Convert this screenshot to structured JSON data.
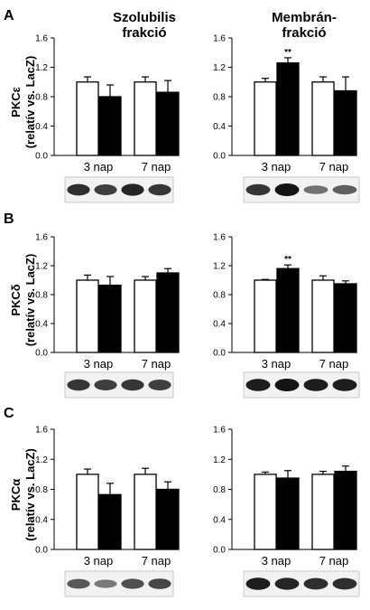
{
  "headers": {
    "left": [
      "Szolubilis",
      "frakció"
    ],
    "right": [
      "Membrán-",
      "frakció"
    ]
  },
  "colors": {
    "control": "#ffffff",
    "treated": "#000000",
    "axis": "#000000"
  },
  "chart_data": [
    {
      "panel": "A",
      "row": 0,
      "col": 0,
      "type": "bar",
      "ylabel": [
        "PKCε",
        "(relatív vs. LacZ)"
      ],
      "categories": [
        "3 nap",
        "7 nap"
      ],
      "ylim": [
        0,
        1.6
      ],
      "yticks": [
        0.0,
        0.4,
        0.8,
        1.2,
        1.6
      ],
      "series": [
        {
          "values": [
            1.0,
            1.0
          ],
          "errors": [
            0.07,
            0.07
          ]
        },
        {
          "values": [
            0.8,
            0.86
          ],
          "errors": [
            0.16,
            0.16
          ]
        }
      ],
      "annotations": []
    },
    {
      "panel": "A",
      "row": 0,
      "col": 1,
      "type": "bar",
      "categories": [
        "3 nap",
        "7 nap"
      ],
      "ylim": [
        0,
        1.6
      ],
      "yticks": [
        0.0,
        0.4,
        0.8,
        1.2,
        1.6
      ],
      "series": [
        {
          "values": [
            1.0,
            1.0
          ],
          "errors": [
            0.05,
            0.07
          ]
        },
        {
          "values": [
            1.26,
            0.88
          ],
          "errors": [
            0.07,
            0.19
          ]
        }
      ],
      "annotations": [
        {
          "text": "**",
          "category": 0,
          "series": 1
        }
      ]
    },
    {
      "panel": "B",
      "row": 1,
      "col": 0,
      "type": "bar",
      "ylabel": [
        "PKCδ",
        "(relatív vs. LacZ)"
      ],
      "categories": [
        "3 nap",
        "7 nap"
      ],
      "ylim": [
        0,
        1.6
      ],
      "yticks": [
        0.0,
        0.4,
        0.8,
        1.2,
        1.6
      ],
      "series": [
        {
          "values": [
            1.0,
            1.0
          ],
          "errors": [
            0.07,
            0.05
          ]
        },
        {
          "values": [
            0.93,
            1.1
          ],
          "errors": [
            0.12,
            0.06
          ]
        }
      ],
      "annotations": []
    },
    {
      "panel": "B",
      "row": 1,
      "col": 1,
      "type": "bar",
      "categories": [
        "3 nap",
        "7 nap"
      ],
      "ylim": [
        0,
        1.6
      ],
      "yticks": [
        0.0,
        0.4,
        0.8,
        1.2,
        1.6
      ],
      "series": [
        {
          "values": [
            1.0,
            1.0
          ],
          "errors": [
            0.01,
            0.06
          ]
        },
        {
          "values": [
            1.16,
            0.95
          ],
          "errors": [
            0.05,
            0.04
          ]
        }
      ],
      "annotations": [
        {
          "text": "**",
          "category": 0,
          "series": 1
        }
      ]
    },
    {
      "panel": "C",
      "row": 2,
      "col": 0,
      "type": "bar",
      "ylabel": [
        "PKCα",
        "(relatív vs. LacZ)"
      ],
      "categories": [
        "3 nap",
        "7 nap"
      ],
      "ylim": [
        0,
        1.6
      ],
      "yticks": [
        0.0,
        0.4,
        0.8,
        1.2,
        1.6
      ],
      "series": [
        {
          "values": [
            1.0,
            1.0
          ],
          "errors": [
            0.07,
            0.08
          ]
        },
        {
          "values": [
            0.73,
            0.8
          ],
          "errors": [
            0.15,
            0.1
          ]
        }
      ],
      "annotations": []
    },
    {
      "panel": "C",
      "row": 2,
      "col": 1,
      "type": "bar",
      "categories": [
        "3 nap",
        "7 nap"
      ],
      "ylim": [
        0,
        1.6
      ],
      "yticks": [
        0.0,
        0.4,
        0.8,
        1.2,
        1.6
      ],
      "series": [
        {
          "values": [
            1.0,
            1.0
          ],
          "errors": [
            0.03,
            0.04
          ]
        },
        {
          "values": [
            0.95,
            1.04
          ],
          "errors": [
            0.1,
            0.07
          ]
        }
      ],
      "annotations": []
    }
  ],
  "blots": [
    {
      "row": 0,
      "col": 0,
      "intensities": [
        0.85,
        0.75,
        0.9,
        0.8
      ]
    },
    {
      "row": 0,
      "col": 1,
      "intensities": [
        0.8,
        1.0,
        0.45,
        0.55
      ]
    },
    {
      "row": 1,
      "col": 0,
      "intensities": [
        0.8,
        0.75,
        0.8,
        0.75
      ]
    },
    {
      "row": 1,
      "col": 1,
      "intensities": [
        0.95,
        1.0,
        0.95,
        0.95
      ]
    },
    {
      "row": 2,
      "col": 0,
      "intensities": [
        0.6,
        0.4,
        0.65,
        0.7
      ]
    },
    {
      "row": 2,
      "col": 1,
      "intensities": [
        0.95,
        0.9,
        0.85,
        0.85
      ]
    }
  ]
}
